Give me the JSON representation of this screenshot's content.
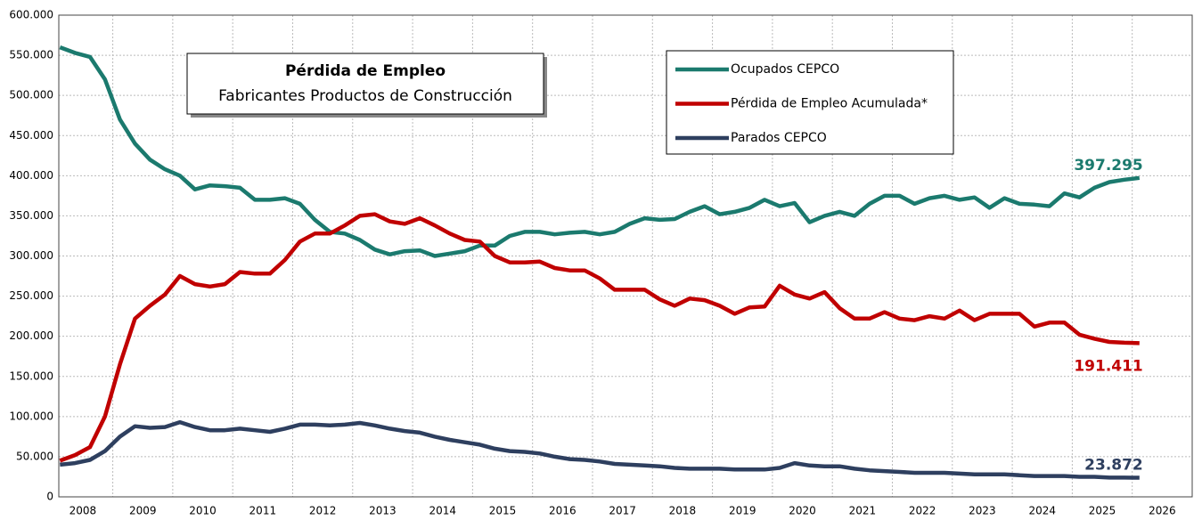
{
  "chart_data": {
    "type": "line",
    "title": "Pérdida de Empleo",
    "subtitle": "Fabricantes Productos de Construcción",
    "x": [
      2008.12,
      2008.37,
      2008.62,
      2008.87,
      2009.12,
      2009.37,
      2009.62,
      2009.87,
      2010.12,
      2010.37,
      2010.62,
      2010.87,
      2011.12,
      2011.37,
      2011.62,
      2011.87,
      2012.12,
      2012.37,
      2012.62,
      2012.87,
      2013.12,
      2013.37,
      2013.62,
      2013.87,
      2014.12,
      2014.37,
      2014.62,
      2014.87,
      2015.12,
      2015.37,
      2015.62,
      2015.87,
      2016.12,
      2016.37,
      2016.62,
      2016.87,
      2017.12,
      2017.37,
      2017.62,
      2017.87,
      2018.12,
      2018.37,
      2018.62,
      2018.87,
      2019.12,
      2019.37,
      2019.62,
      2019.87,
      2020.12,
      2020.37,
      2020.62,
      2020.87,
      2021.12,
      2021.37,
      2021.62,
      2021.87,
      2022.12,
      2022.37,
      2022.62,
      2022.87,
      2023.12,
      2023.37,
      2023.62,
      2023.87,
      2024.12,
      2024.37,
      2024.62,
      2024.87,
      2025.12,
      2025.37,
      2025.62,
      2025.87,
      2026.12
    ],
    "series": [
      {
        "name": "Ocupados CEPCO",
        "color": "#1b7a6e",
        "values": [
          560000,
          553000,
          548000,
          520000,
          470000,
          440000,
          420000,
          408000,
          400000,
          383000,
          388000,
          387000,
          385000,
          370000,
          370000,
          372000,
          365000,
          345000,
          330000,
          328000,
          320000,
          308000,
          302000,
          306000,
          307000,
          300000,
          303000,
          306000,
          313000,
          313000,
          325000,
          330000,
          330000,
          327000,
          329000,
          330000,
          327000,
          330000,
          340000,
          347000,
          345000,
          346000,
          355000,
          362000,
          352000,
          355000,
          360000,
          370000,
          362000,
          366000,
          342000,
          350000,
          355000,
          350000,
          365000,
          375000,
          375000,
          365000,
          372000,
          375000,
          370000,
          373000,
          360000,
          372000,
          365000,
          364000,
          362000,
          378000,
          373000,
          385000,
          392000,
          395000,
          397295
        ],
        "value_labels": [
          null,
          null,
          null,
          null,
          null,
          null,
          null,
          null,
          null,
          null,
          null,
          null,
          null,
          null,
          null,
          null,
          null,
          null,
          null,
          null,
          null,
          null,
          null,
          null,
          null,
          null,
          null,
          null,
          null,
          null,
          null,
          null,
          null,
          null,
          null,
          null,
          null,
          null,
          null,
          null,
          null,
          null,
          null,
          null,
          null,
          null,
          null,
          null,
          null,
          null,
          null,
          null,
          null,
          null,
          null,
          null,
          null,
          null,
          null,
          null,
          null,
          null,
          null,
          null,
          null,
          null,
          null,
          null,
          null,
          null,
          null,
          null,
          "397.295"
        ]
      },
      {
        "name": "Pérdida de Empleo Acumulada*",
        "color": "#c00000",
        "values": [
          45000,
          52000,
          62000,
          100000,
          165000,
          222000,
          238000,
          252000,
          275000,
          265000,
          262000,
          265000,
          280000,
          278000,
          278000,
          295000,
          318000,
          328000,
          328000,
          338000,
          350000,
          352000,
          343000,
          340000,
          347000,
          338000,
          328000,
          320000,
          318000,
          300000,
          292000,
          292000,
          293000,
          285000,
          282000,
          282000,
          272000,
          258000,
          258000,
          258000,
          246000,
          238000,
          247000,
          245000,
          238000,
          228000,
          236000,
          237000,
          263000,
          252000,
          247000,
          255000,
          235000,
          222000,
          222000,
          230000,
          222000,
          220000,
          225000,
          222000,
          232000,
          220000,
          228000,
          228000,
          228000,
          212000,
          217000,
          217000,
          202000,
          197000,
          193000,
          192000,
          191411
        ],
        "value_labels": [
          null,
          null,
          null,
          null,
          null,
          null,
          null,
          null,
          null,
          null,
          null,
          null,
          null,
          null,
          null,
          null,
          null,
          null,
          null,
          null,
          null,
          null,
          null,
          null,
          null,
          null,
          null,
          null,
          null,
          null,
          null,
          null,
          null,
          null,
          null,
          null,
          null,
          null,
          null,
          null,
          null,
          null,
          null,
          null,
          null,
          null,
          null,
          null,
          null,
          null,
          null,
          null,
          null,
          null,
          null,
          null,
          null,
          null,
          null,
          null,
          null,
          null,
          null,
          null,
          null,
          null,
          null,
          null,
          null,
          null,
          null,
          null,
          "191.411"
        ]
      },
      {
        "name": "Parados CEPCO",
        "color": "#2e3f5f",
        "values": [
          40000,
          42000,
          46000,
          57000,
          75000,
          88000,
          86000,
          87000,
          93000,
          87000,
          83000,
          83000,
          85000,
          83000,
          81000,
          85000,
          90000,
          90000,
          89000,
          90000,
          92000,
          89000,
          85000,
          82000,
          80000,
          75000,
          71000,
          68000,
          65000,
          60000,
          57000,
          56000,
          54000,
          50000,
          47000,
          46000,
          44000,
          41000,
          40000,
          39000,
          38000,
          36000,
          35000,
          35000,
          35000,
          34000,
          34000,
          34000,
          36000,
          42000,
          39000,
          38000,
          38000,
          35000,
          33000,
          32000,
          31000,
          30000,
          30000,
          30000,
          29000,
          28000,
          28000,
          28000,
          27000,
          26000,
          26000,
          26000,
          25000,
          25000,
          24000,
          24000,
          23872
        ],
        "value_labels": [
          null,
          null,
          null,
          null,
          null,
          null,
          null,
          null,
          null,
          null,
          null,
          null,
          null,
          null,
          null,
          null,
          null,
          null,
          null,
          null,
          null,
          null,
          null,
          null,
          null,
          null,
          null,
          null,
          null,
          null,
          null,
          null,
          null,
          null,
          null,
          null,
          null,
          null,
          null,
          null,
          null,
          null,
          null,
          null,
          null,
          null,
          null,
          null,
          null,
          null,
          null,
          null,
          null,
          null,
          null,
          null,
          null,
          null,
          null,
          null,
          null,
          null,
          null,
          null,
          null,
          null,
          null,
          null,
          null,
          null,
          null,
          null,
          "23.872"
        ]
      }
    ],
    "xlim": [
      2008.1,
      2027
    ],
    "xticks": [
      {
        "value": 2008.5,
        "label": "2008"
      },
      {
        "value": 2009.5,
        "label": "2009"
      },
      {
        "value": 2010.5,
        "label": "2010"
      },
      {
        "value": 2011.5,
        "label": "2011"
      },
      {
        "value": 2012.5,
        "label": "2012"
      },
      {
        "value": 2013.5,
        "label": "2013"
      },
      {
        "value": 2014.5,
        "label": "2014"
      },
      {
        "value": 2015.5,
        "label": "2015"
      },
      {
        "value": 2016.5,
        "label": "2016"
      },
      {
        "value": 2017.5,
        "label": "2017"
      },
      {
        "value": 2018.5,
        "label": "2018"
      },
      {
        "value": 2019.5,
        "label": "2019"
      },
      {
        "value": 2020.5,
        "label": "2020"
      },
      {
        "value": 2021.5,
        "label": "2021"
      },
      {
        "value": 2022.5,
        "label": "2022"
      },
      {
        "value": 2023.5,
        "label": "2023"
      },
      {
        "value": 2024.5,
        "label": "2024"
      },
      {
        "value": 2025.5,
        "label": "2025"
      },
      {
        "value": 2026.5,
        "label": "2026"
      }
    ],
    "ylim": [
      0,
      600000
    ],
    "yticks": [
      0,
      {
        "value": 50000,
        "label": "50.000"
      },
      {
        "value": 100000,
        "label": "100.000"
      },
      {
        "value": 150000,
        "label": "150.000"
      },
      {
        "value": 200000,
        "label": "200.000"
      },
      {
        "value": 250000,
        "label": "250.000"
      },
      {
        "value": 300000,
        "label": "300.000"
      },
      {
        "value": 350000,
        "label": "350.000"
      },
      {
        "value": 400000,
        "label": "400.000"
      },
      {
        "value": 450000,
        "label": "450.000"
      },
      {
        "value": 500000,
        "label": "500.000"
      },
      {
        "value": 550000,
        "label": "550.000"
      },
      {
        "value": 600000,
        "label": "600.000"
      }
    ],
    "grid": true
  }
}
